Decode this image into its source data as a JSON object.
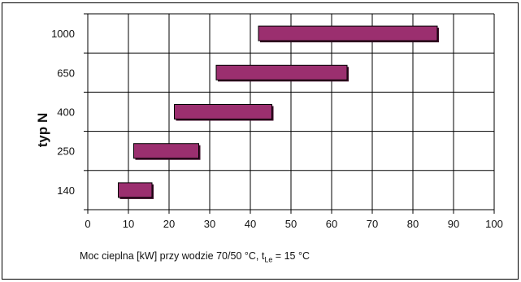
{
  "chart_data": {
    "type": "bar",
    "orientation": "horizontal-range",
    "categories": [
      "140",
      "250",
      "400",
      "650",
      "1000"
    ],
    "ranges": [
      {
        "category": "140",
        "start": 7.5,
        "end": 15.8
      },
      {
        "category": "250",
        "start": 11.3,
        "end": 27.3
      },
      {
        "category": "400",
        "start": 21.3,
        "end": 45.3
      },
      {
        "category": "650",
        "start": 31.6,
        "end": 63.8
      },
      {
        "category": "1000",
        "start": 42.0,
        "end": 86.0
      }
    ],
    "xlim": [
      0,
      100
    ],
    "x_ticks": [
      0,
      10,
      20,
      30,
      40,
      50,
      60,
      70,
      80,
      90,
      100
    ],
    "ylabel": "typ N",
    "xlabel_main": "Moc cieplna [kW] przy wodzie 70/50 °C, t",
    "xlabel_sub": "Le",
    "xlabel_tail": " = 15 °C",
    "grid": true,
    "bar_color": "#9b2f6f",
    "bar_shadow_color": "#3a0a26"
  }
}
